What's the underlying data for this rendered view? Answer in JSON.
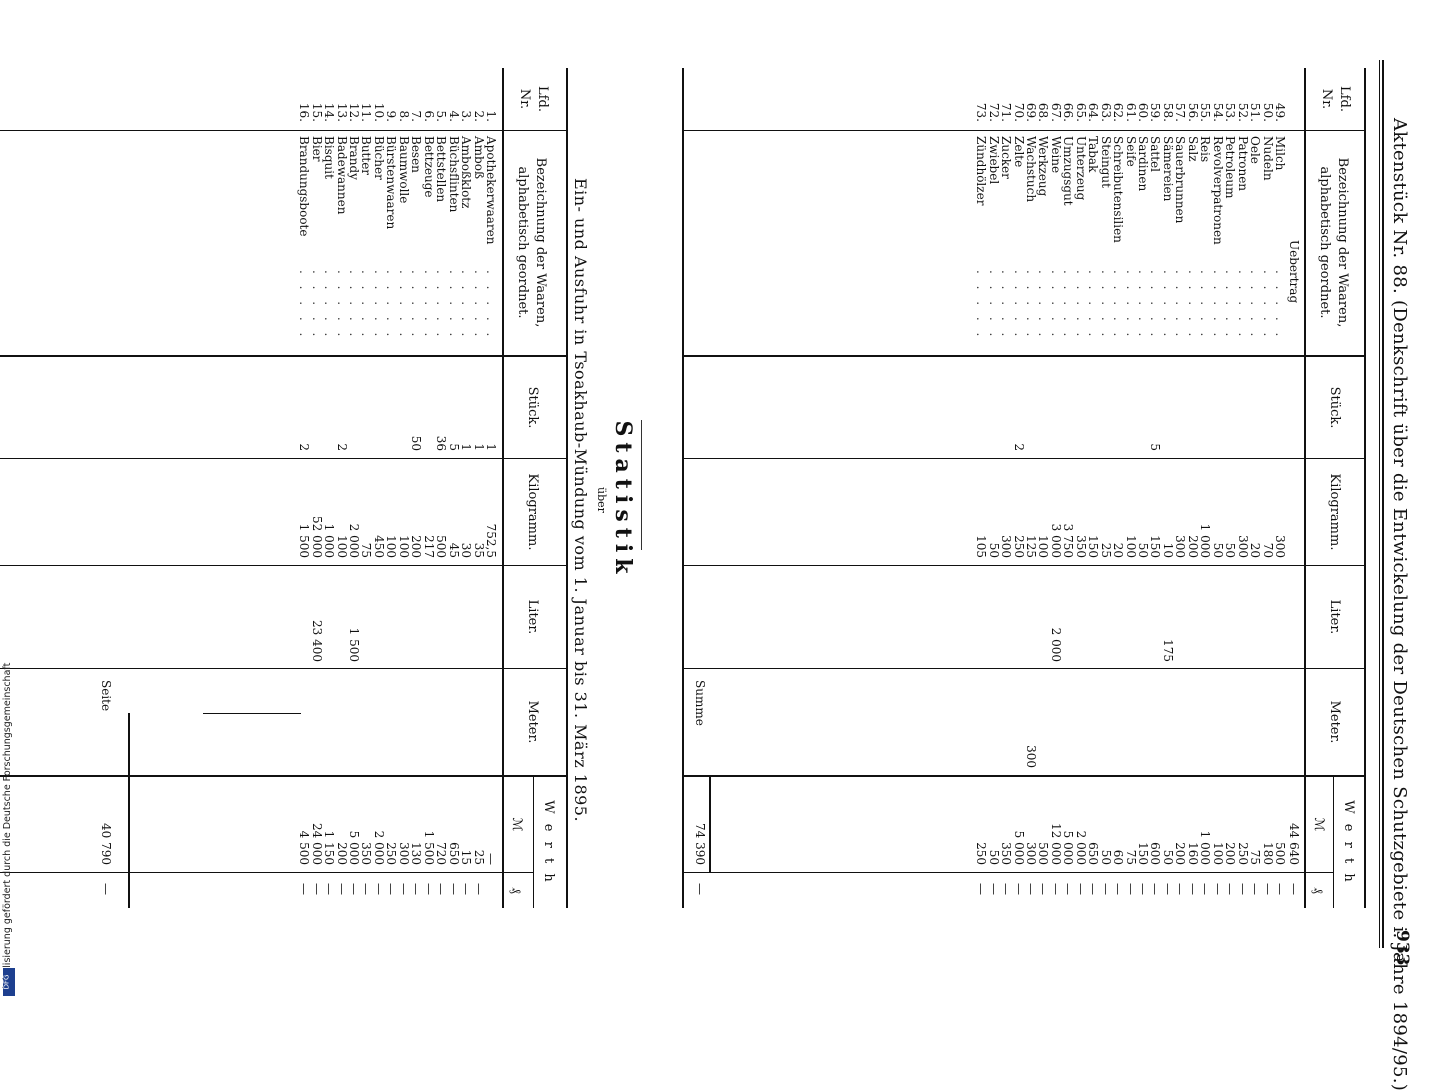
{
  "header": {
    "title": "Aktenstück Nr. 88. (Denkschrift über die Entwickelung der Deutschen Schutzgebiete i. Jahre 1894/95.)",
    "page_number": "933"
  },
  "columns": {
    "nr": [
      "Lfd.",
      "Nr."
    ],
    "name": [
      "Bezeichnung der Waaren,",
      "alphabetisch geordnet."
    ],
    "stueck": "Stück.",
    "kg": "Kilogramm.",
    "liter": "Liter.",
    "meter": "Meter.",
    "werth": "W e r t h",
    "mark": "ℳ",
    "pf": "₰"
  },
  "upper_table": {
    "uebertrag_label": "Uebertrag",
    "uebertrag_werth": "44 640",
    "uebertrag_pf": "—",
    "rows": [
      {
        "nr": "49.",
        "name": "Milch",
        "stueck": "",
        "kg": "300",
        "liter": "",
        "meter": "",
        "werth": "500"
      },
      {
        "nr": "50.",
        "name": "Nudeln",
        "stueck": "",
        "kg": "70",
        "liter": "",
        "meter": "",
        "werth": "180"
      },
      {
        "nr": "51.",
        "name": "Oele",
        "stueck": "",
        "kg": "20",
        "liter": "",
        "meter": "",
        "werth": "75"
      },
      {
        "nr": "52.",
        "name": "Patronen",
        "stueck": "",
        "kg": "300",
        "liter": "",
        "meter": "",
        "werth": "250"
      },
      {
        "nr": "53.",
        "name": "Petroleum",
        "stueck": "",
        "kg": "50",
        "liter": "",
        "meter": "",
        "werth": "200"
      },
      {
        "nr": "54.",
        "name": "Revolverpatronen",
        "stueck": "",
        "kg": "50",
        "liter": "",
        "meter": "",
        "werth": "100"
      },
      {
        "nr": "55.",
        "name": "Reis",
        "stueck": "",
        "kg": "1 000",
        "liter": "",
        "meter": "",
        "werth": "1 000"
      },
      {
        "nr": "56.",
        "name": "Salz",
        "stueck": "",
        "kg": "200",
        "liter": "",
        "meter": "",
        "werth": "160"
      },
      {
        "nr": "57.",
        "name": "Sauerbrunnen",
        "stueck": "",
        "kg": "300",
        "liter": "",
        "meter": "",
        "werth": "200"
      },
      {
        "nr": "58.",
        "name": "Sämereien",
        "stueck": "",
        "kg": "10",
        "liter": "175",
        "meter": "",
        "werth": "50"
      },
      {
        "nr": "59.",
        "name": "Sattel",
        "stueck": "5",
        "kg": "150",
        "liter": "",
        "meter": "",
        "werth": "600"
      },
      {
        "nr": "60.",
        "name": "Sardinen",
        "stueck": "",
        "kg": "50",
        "liter": "",
        "meter": "",
        "werth": "150"
      },
      {
        "nr": "61.",
        "name": "Seife",
        "stueck": "",
        "kg": "100",
        "liter": "",
        "meter": "",
        "werth": "75"
      },
      {
        "nr": "62.",
        "name": "Schreibutensilien",
        "stueck": "",
        "kg": "20",
        "liter": "",
        "meter": "",
        "werth": "60"
      },
      {
        "nr": "63.",
        "name": "Steingut",
        "stueck": "",
        "kg": "25",
        "liter": "",
        "meter": "",
        "werth": "50"
      },
      {
        "nr": "64.",
        "name": "Tabak",
        "stueck": "",
        "kg": "150",
        "liter": "",
        "meter": "",
        "werth": "650"
      },
      {
        "nr": "65.",
        "name": "Unterzeug",
        "stueck": "",
        "kg": "350",
        "liter": "",
        "meter": "",
        "werth": "2 000"
      },
      {
        "nr": "66.",
        "name": "Umzugsgut",
        "stueck": "",
        "kg": "3 750",
        "liter": "",
        "meter": "",
        "werth": "5 000"
      },
      {
        "nr": "67.",
        "name": "Weine",
        "stueck": "",
        "kg": "3 000",
        "liter": "2 000",
        "meter": "",
        "werth": "12 000"
      },
      {
        "nr": "68.",
        "name": "Werkzeug",
        "stueck": "",
        "kg": "100",
        "liter": "",
        "meter": "",
        "werth": "500"
      },
      {
        "nr": "69.",
        "name": "Wachstuch",
        "stueck": "",
        "kg": "125",
        "liter": "",
        "meter": "300",
        "werth": "300"
      },
      {
        "nr": "70.",
        "name": "Zelte",
        "stueck": "2",
        "kg": "250",
        "liter": "",
        "meter": "",
        "werth": "5 000"
      },
      {
        "nr": "71.",
        "name": "Zucker",
        "stueck": "",
        "kg": "300",
        "liter": "",
        "meter": "",
        "werth": "350"
      },
      {
        "nr": "72.",
        "name": "Zwiebel",
        "stueck": "",
        "kg": "50",
        "liter": "",
        "meter": "",
        "werth": "50"
      },
      {
        "nr": "73.",
        "name": "Zündhölzer",
        "stueck": "",
        "kg": "105",
        "liter": "",
        "meter": "",
        "werth": "250"
      }
    ],
    "summe_label": "Summe",
    "summe_werth": "74 390",
    "summe_pf": "—"
  },
  "statistik": {
    "title": "Statistik",
    "ueber": "über",
    "subtitle": "Ein- und Ausfuhr in Tsoakhaub-Mündung vom 1. Januar bis 31. März 1895."
  },
  "lower_table": {
    "rows": [
      {
        "nr": "1.",
        "name": "Apothekerwaaren",
        "stueck": "1",
        "kg": "752,5",
        "liter": "",
        "meter": "",
        "werth": "—",
        "pf": ""
      },
      {
        "nr": "2.",
        "name": "Amboß",
        "stueck": "1",
        "kg": "35",
        "liter": "",
        "meter": "",
        "werth": "25",
        "pf": "—"
      },
      {
        "nr": "3.",
        "name": "Amboßklotz",
        "stueck": "1",
        "kg": "30",
        "liter": "",
        "meter": "",
        "werth": "15",
        "pf": "—"
      },
      {
        "nr": "4.",
        "name": "Büchsflinten",
        "stueck": "5",
        "kg": "45",
        "liter": "",
        "meter": "",
        "werth": "650",
        "pf": "—"
      },
      {
        "nr": "5.",
        "name": "Bettstellen",
        "stueck": "36",
        "kg": "500",
        "liter": "",
        "meter": "",
        "werth": "720",
        "pf": "—"
      },
      {
        "nr": "6.",
        "name": "Bettzeuge",
        "stueck": "",
        "kg": "217",
        "liter": "",
        "meter": "",
        "werth": "1 500",
        "pf": "—"
      },
      {
        "nr": "7.",
        "name": "Besen",
        "stueck": "50",
        "kg": "200",
        "liter": "",
        "meter": "",
        "werth": "130",
        "pf": "—"
      },
      {
        "nr": "8.",
        "name": "Baumwolle",
        "stueck": "",
        "kg": "100",
        "liter": "",
        "meter": "",
        "werth": "300",
        "pf": "—"
      },
      {
        "nr": "9.",
        "name": "Bürstenwaaren",
        "stueck": "",
        "kg": "100",
        "liter": "",
        "meter": "",
        "werth": "250",
        "pf": "—"
      },
      {
        "nr": "10.",
        "name": "Bücher",
        "stueck": "",
        "kg": "450",
        "liter": "",
        "meter": "",
        "werth": "2 000",
        "pf": "—"
      },
      {
        "nr": "11.",
        "name": "Butter",
        "stueck": "",
        "kg": "75",
        "liter": "",
        "meter": "",
        "werth": "350",
        "pf": "—"
      },
      {
        "nr": "12.",
        "name": "Brandy",
        "stueck": "",
        "kg": "2 000",
        "liter": "1 500",
        "meter": "",
        "werth": "5 000",
        "pf": "—"
      },
      {
        "nr": "13.",
        "name": "Badewannen",
        "stueck": "2",
        "kg": "100",
        "liter": "",
        "meter": "",
        "werth": "200",
        "pf": "—"
      },
      {
        "nr": "14.",
        "name": "Bisquit",
        "stueck": "",
        "kg": "1 000",
        "liter": "",
        "meter": "",
        "werth": "1 150",
        "pf": "—"
      },
      {
        "nr": "15.",
        "name": "Bier",
        "stueck": "",
        "kg": "52 000",
        "liter": "23 400",
        "meter": "",
        "werth": "24 000",
        "pf": "—"
      },
      {
        "nr": "16.",
        "name": "Brandungsboote",
        "stueck": "2",
        "kg": "1 500",
        "liter": "",
        "meter": "",
        "werth": "4 500",
        "pf": "—"
      }
    ],
    "seite_label": "Seite",
    "seite_werth": "40 790",
    "seite_pf": "—"
  },
  "footer": {
    "credit": "Digitalisierung gefördert durch die Deutsche Forschungsgemeinschaft",
    "logo": "DFG"
  }
}
